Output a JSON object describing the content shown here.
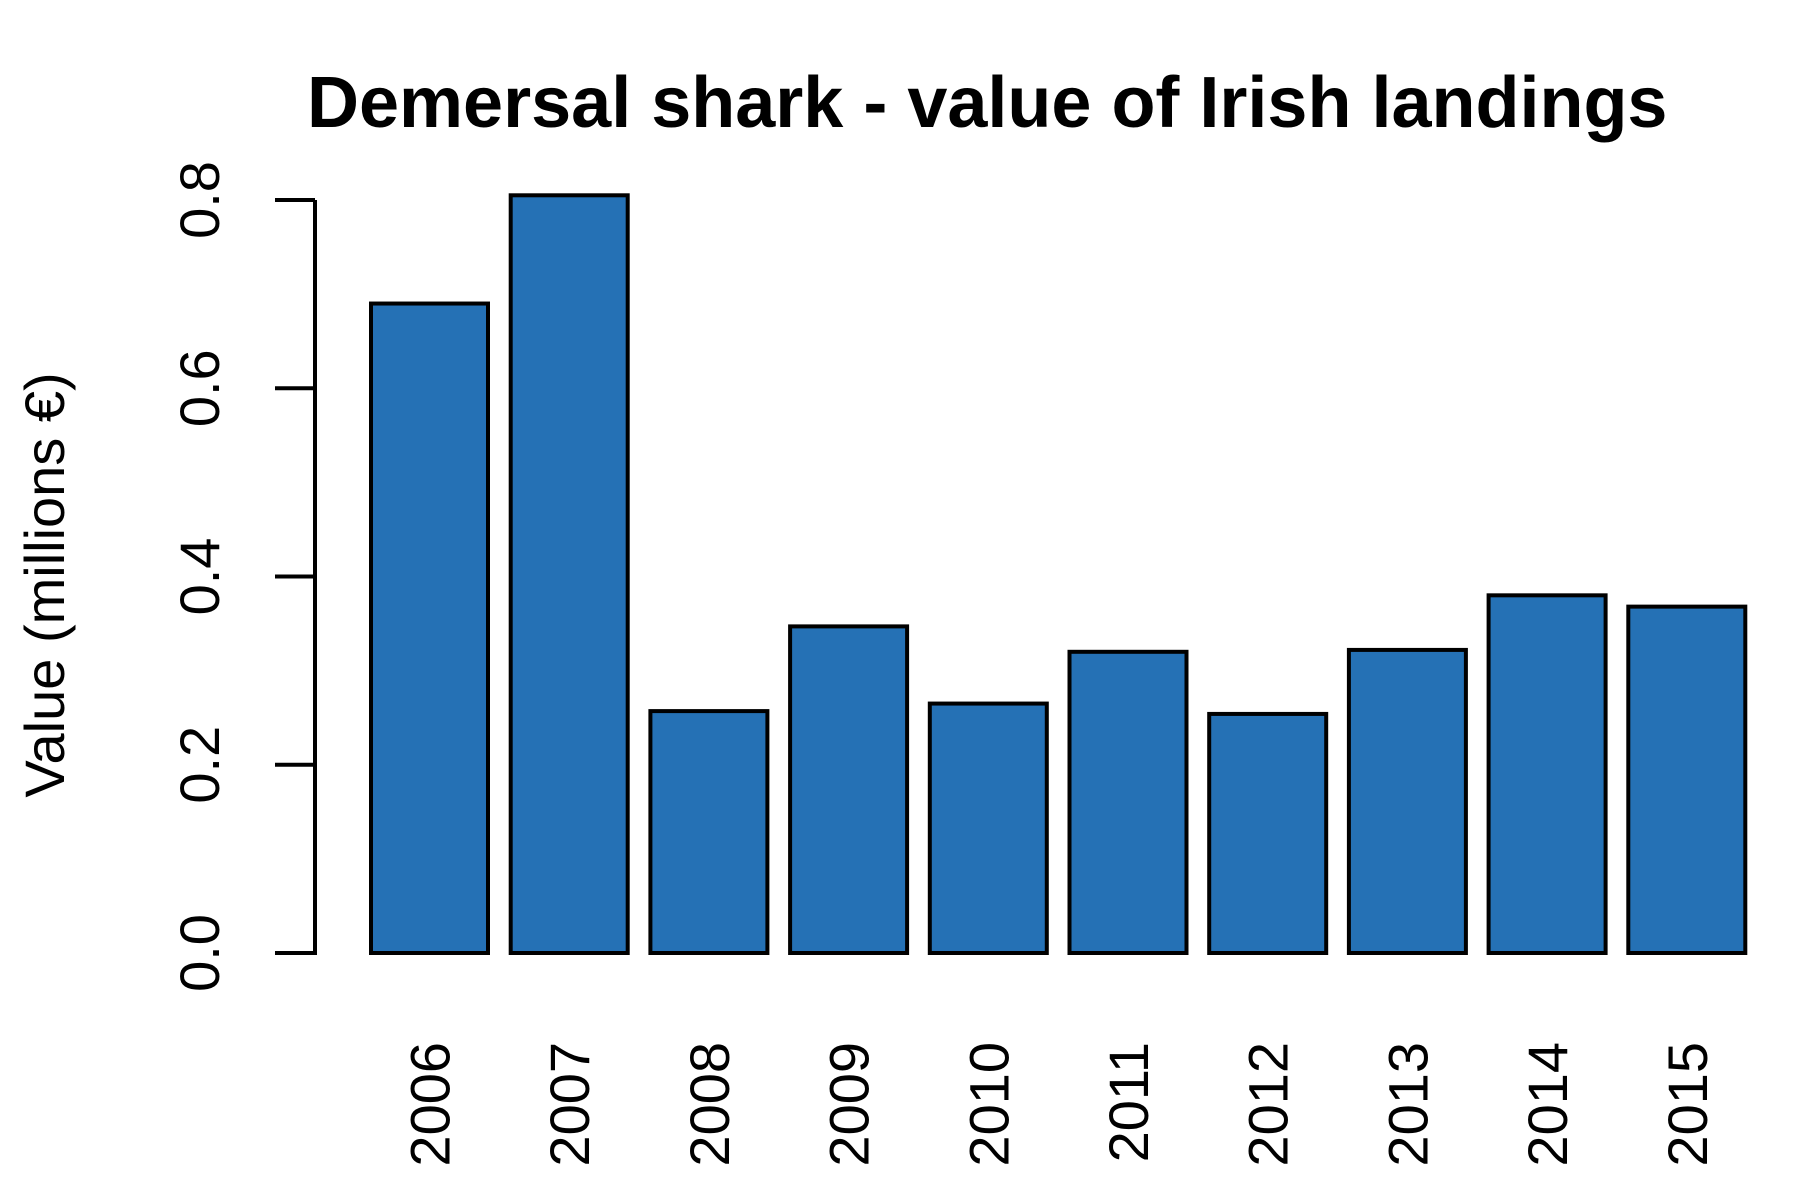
{
  "chart_data": {
    "type": "bar",
    "title": "Demersal shark - value of Irish landings",
    "xlabel": "",
    "ylabel": "Value (millions €)",
    "categories": [
      "2006",
      "2007",
      "2008",
      "2009",
      "2010",
      "2011",
      "2012",
      "2013",
      "2014",
      "2015"
    ],
    "values": [
      0.69,
      0.805,
      0.257,
      0.347,
      0.265,
      0.32,
      0.254,
      0.322,
      0.38,
      0.368
    ],
    "ylim": [
      0,
      0.8
    ],
    "yticks": [
      0.0,
      0.2,
      0.4,
      0.6,
      0.8
    ],
    "ytick_labels": [
      "0.0",
      "0.2",
      "0.4",
      "0.6",
      "0.8"
    ],
    "grid": false,
    "legend": "none",
    "colors": {
      "bar_fill": "#2571b5",
      "bar_outline": "#000000",
      "text": "#000000"
    }
  }
}
